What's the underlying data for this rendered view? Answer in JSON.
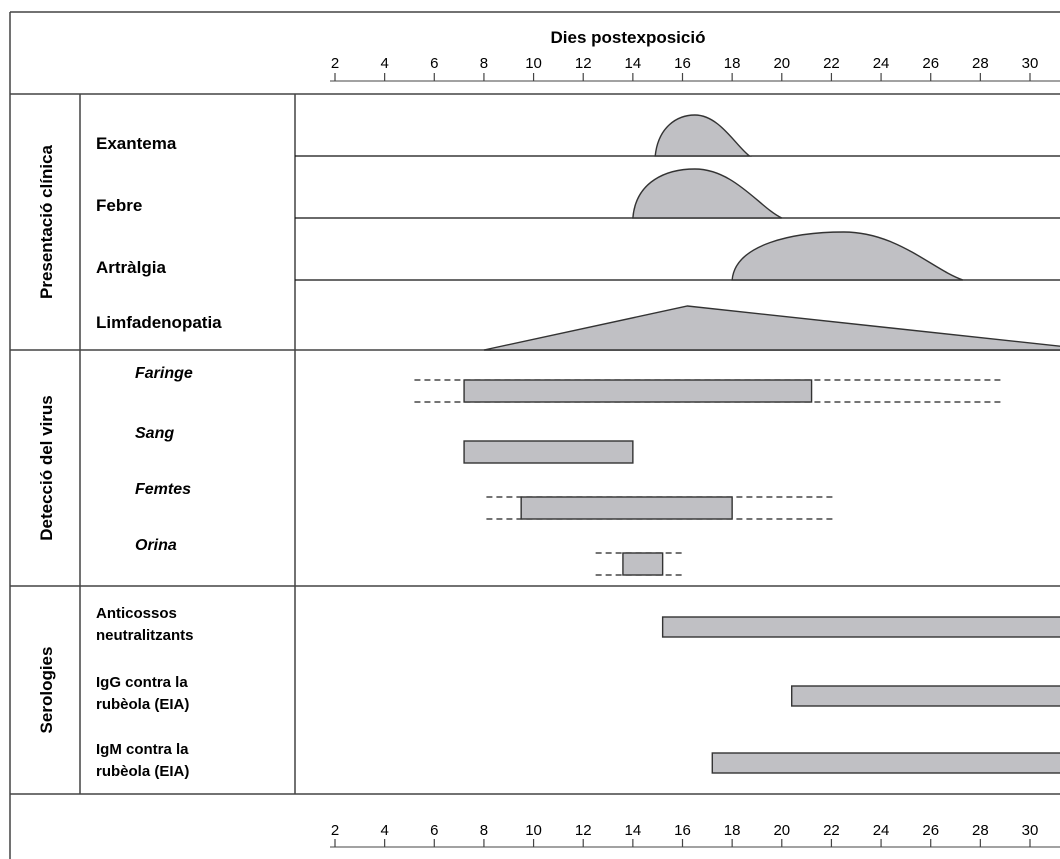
{
  "chart_data": {
    "type": "timeline",
    "axis": {
      "title": "Dies postexposició",
      "range": [
        0.5,
        31.5
      ],
      "ticks": [
        2,
        4,
        6,
        8,
        10,
        12,
        14,
        16,
        18,
        20,
        22,
        24,
        26,
        28,
        30
      ],
      "tick_labels": [
        "2",
        "4",
        "6",
        "8",
        "10",
        "12",
        "14",
        "16",
        "18",
        "20",
        "22",
        "24",
        "26",
        "28",
        "30"
      ]
    },
    "sections": [
      {
        "label": "Presentació clínica",
        "rows": [
          {
            "label": "Exantema",
            "kind": "curve",
            "start": 14.9,
            "peak": 16.5,
            "end": 18.7
          },
          {
            "label": "Febre",
            "kind": "curve",
            "start": 14.0,
            "peak": 16.5,
            "end": 20.0
          },
          {
            "label": "Artràlgia",
            "kind": "curve",
            "start": 18.0,
            "peak": 22.5,
            "end": 27.3
          },
          {
            "label": "Limfadenopatia",
            "kind": "triangle",
            "start": 8.0,
            "peak": 16.2,
            "end": 31.5
          }
        ]
      },
      {
        "label": "Detecció del virus",
        "rows": [
          {
            "label": "Faringe",
            "kind": "bar",
            "start": 7.2,
            "end": 21.2,
            "dashed_start": 5.2,
            "dashed_end": 28.9
          },
          {
            "label": "Sang",
            "kind": "bar",
            "start": 7.2,
            "end": 14.0
          },
          {
            "label": "Femtes",
            "kind": "bar",
            "start": 9.5,
            "end": 18.0,
            "dashed_start": 8.1,
            "dashed_end": 22.1
          },
          {
            "label": "Orina",
            "kind": "bar",
            "start": 13.6,
            "end": 15.2,
            "dashed_start": 12.5,
            "dashed_end": 16.1
          }
        ]
      },
      {
        "label": "Serologies",
        "rows": [
          {
            "label_lines": [
              "Anticossos",
              " neutralitzants"
            ],
            "kind": "bar",
            "start": 15.2,
            "end": 31.5
          },
          {
            "label_lines": [
              "IgG  contra la",
              "rubèola (EIA)"
            ],
            "kind": "bar",
            "start": 20.4,
            "end": 31.5
          },
          {
            "label_lines": [
              "IgM contra  la",
              "rubèola (EIA)"
            ],
            "kind": "bar",
            "start": 17.2,
            "end": 31.5
          }
        ]
      }
    ],
    "colors": {
      "fill": "#c0c0c4",
      "stroke": "#333333",
      "frame": "#444444"
    }
  }
}
